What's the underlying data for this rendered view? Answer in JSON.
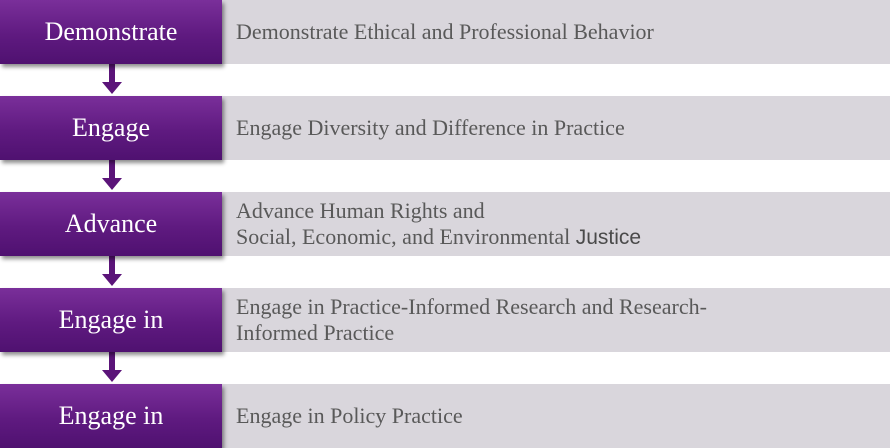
{
  "steps": [
    {
      "label": "Demonstrate",
      "lines": [
        {
          "text": "Demonstrate Ethical and Professional Behavior",
          "suffix": ""
        }
      ]
    },
    {
      "label": "Engage",
      "lines": [
        {
          "text": "Engage Diversity and Difference in Practice",
          "suffix": ""
        }
      ]
    },
    {
      "label": "Advance",
      "lines": [
        {
          "text": "Advance Human Rights and",
          "suffix": ""
        },
        {
          "text": "Social, Economic, and Environmental ",
          "suffix": "Justice"
        }
      ]
    },
    {
      "label": "Engage in",
      "lines": [
        {
          "text": "Engage in Practice-Informed Research and Research-",
          "suffix": ""
        },
        {
          "text": "Informed Practice",
          "suffix": ""
        }
      ]
    },
    {
      "label": "Engage in",
      "lines": [
        {
          "text": "Engage in Policy Practice",
          "suffix": ""
        }
      ]
    }
  ],
  "colors": {
    "label_fill": "#5f1a80",
    "description_fill": "#d9d6dc",
    "arrow": "#5b1479",
    "description_text": "#595959"
  }
}
